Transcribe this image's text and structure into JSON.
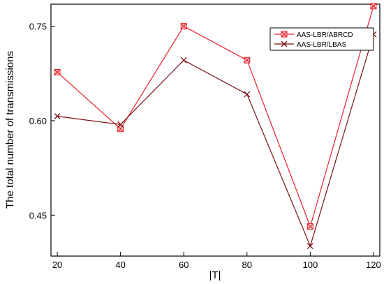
{
  "chart_data": {
    "type": "line",
    "title": "",
    "xlabel": "|T|",
    "ylabel": "The total number of transmissions",
    "x": [
      20,
      40,
      60,
      80,
      100,
      120
    ],
    "x_ticks": [
      "20",
      "40",
      "60",
      "80",
      "100",
      "120"
    ],
    "y_ticks": [
      "0.45",
      "0.60",
      "0.75"
    ],
    "xlim": [
      18,
      122
    ],
    "ylim": [
      0.385,
      0.785
    ],
    "grid": false,
    "legend_position": "top-right",
    "series": [
      {
        "name": "AAS-LBR/ABRCD",
        "color": "#e8202a",
        "marker": "boxed-x",
        "values": [
          0.677,
          0.587,
          0.75,
          0.696,
          0.432,
          0.782
        ]
      },
      {
        "name": "AAS-LBR/LBAS",
        "color": "#7a0f14",
        "marker": "x",
        "values": [
          0.607,
          0.594,
          0.696,
          0.642,
          0.401,
          0.737
        ]
      }
    ]
  }
}
